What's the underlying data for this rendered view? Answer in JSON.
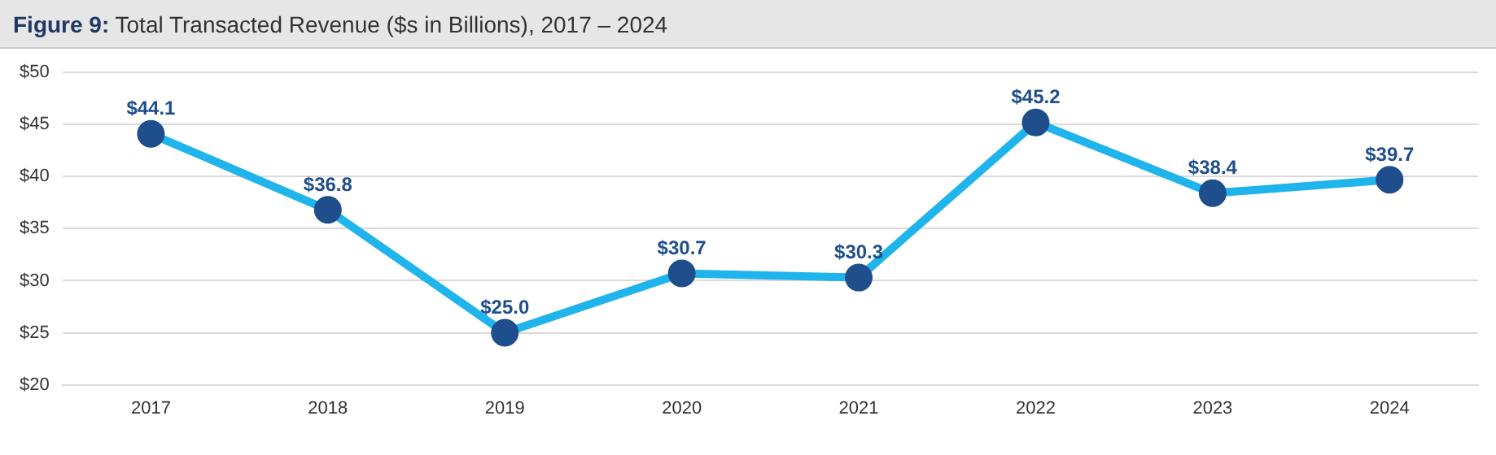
{
  "chart_data": {
    "type": "line",
    "title": "Figure 9: Total Transacted Revenue ($s in Billions), 2017 – 2024",
    "categories": [
      "2017",
      "2018",
      "2019",
      "2020",
      "2021",
      "2022",
      "2023",
      "2024"
    ],
    "series": [
      {
        "color": "#1fb4ec",
        "values": [
          44.1,
          36.8,
          25.0,
          30.7,
          30.3,
          45.2,
          38.4,
          39.7
        ],
        "value_labels": [
          "$44.1",
          "$36.8",
          "$25.0",
          "$30.7",
          "$30.3",
          "$45.2",
          "$38.4",
          "$39.7"
        ]
      }
    ],
    "ylim": [
      20,
      50
    ],
    "yticks": [
      {
        "value": 20,
        "label": "$20"
      },
      {
        "value": 25,
        "label": "$25"
      },
      {
        "value": 30,
        "label": "$30"
      },
      {
        "value": 35,
        "label": "$35"
      },
      {
        "value": 40,
        "label": "$40"
      },
      {
        "value": 45,
        "label": "$45"
      },
      {
        "value": 50,
        "label": "$50"
      }
    ],
    "grid": "y",
    "marker": "circle",
    "line_style": "solid",
    "legend": false
  }
}
